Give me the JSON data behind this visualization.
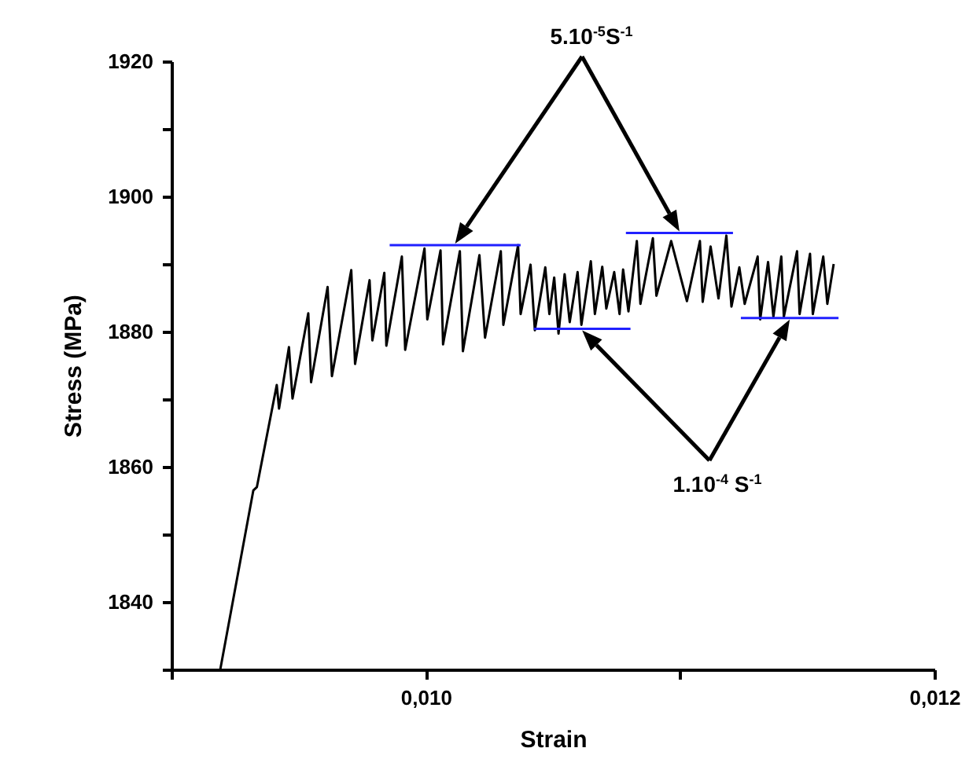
{
  "chart_data": {
    "type": "line",
    "xlabel": "Strain",
    "ylabel": "Stress (MPa)",
    "xlim": [
      0.009,
      0.012
    ],
    "ylim": [
      1830,
      1920
    ],
    "xticks": [
      {
        "value": 0.009,
        "label": null
      },
      {
        "value": 0.01,
        "label": "0,010"
      },
      {
        "value": 0.011,
        "label": null
      },
      {
        "value": 0.012,
        "label": "0,012"
      }
    ],
    "yticks": [
      {
        "value": 1830,
        "label": null
      },
      1840,
      {
        "value": 1850,
        "label": null
      },
      1860,
      {
        "value": 1870,
        "label": null
      },
      1880,
      {
        "value": 1890,
        "label": null
      },
      1900,
      {
        "value": 1910,
        "label": null
      },
      1920
    ],
    "series": [
      {
        "color": "#000000",
        "x": [
          0.009192,
          0.009322,
          0.009336,
          0.009414,
          0.009423,
          0.009462,
          0.009476,
          0.009538,
          0.009549,
          0.009614,
          0.009631,
          0.009707,
          0.009722,
          0.009779,
          0.00979,
          0.009837,
          0.009845,
          0.009906,
          0.009919,
          0.009995,
          0.010006,
          0.010058,
          0.010068,
          0.010134,
          0.010146,
          0.010211,
          0.010233,
          0.010295,
          0.010305,
          0.010363,
          0.010373,
          0.010412,
          0.010429,
          0.01047,
          0.010486,
          0.010505,
          0.010522,
          0.010546,
          0.010566,
          0.010597,
          0.010612,
          0.010649,
          0.010665,
          0.010694,
          0.01071,
          0.010741,
          0.010762,
          0.010776,
          0.010797,
          0.01083,
          0.010844,
          0.010893,
          0.010907,
          0.010965,
          0.011027,
          0.011078,
          0.011089,
          0.01112,
          0.011151,
          0.011182,
          0.011202,
          0.011233,
          0.011254,
          0.011305,
          0.011315,
          0.011346,
          0.011367,
          0.011398,
          0.011408,
          0.01146,
          0.01147,
          0.011511,
          0.011522,
          0.011563,
          0.011579,
          0.011604
        ],
        "values": [
          1830,
          1856.5,
          1857,
          1872.1,
          1868.6,
          1877.7,
          1870.1,
          1882.7,
          1872.5,
          1886.6,
          1873.4,
          1889.1,
          1875.2,
          1887.6,
          1878.7,
          1888.7,
          1877.9,
          1891.1,
          1877.3,
          1892.3,
          1881.8,
          1892,
          1878.1,
          1891.9,
          1877.1,
          1891.3,
          1879.1,
          1891.9,
          1881,
          1892.8,
          1882.6,
          1889.9,
          1880.2,
          1889.5,
          1882.6,
          1888,
          1879.7,
          1888.5,
          1881.4,
          1888.8,
          1881,
          1890.4,
          1882.6,
          1889.6,
          1883.4,
          1888.8,
          1882.6,
          1889.2,
          1883,
          1893.4,
          1884.1,
          1893.8,
          1885.3,
          1893.4,
          1884.5,
          1893.4,
          1884.4,
          1892.6,
          1884.9,
          1894.2,
          1883.7,
          1889.5,
          1884.1,
          1891.1,
          1881.8,
          1890.3,
          1882.2,
          1891.1,
          1882.2,
          1891.9,
          1882.6,
          1891.5,
          1882.6,
          1891.1,
          1884.1,
          1890
        ]
      },
      {
        "color": "#2020ff",
        "x": [
          0.009858,
          0.010373
        ],
        "values": [
          1892.8,
          1892.8
        ]
      },
      {
        "color": "#2020ff",
        "x": [
          0.010425,
          0.010805
        ],
        "values": [
          1880.4,
          1880.4
        ]
      },
      {
        "color": "#2020ff",
        "x": [
          0.010787,
          0.011208
        ],
        "values": [
          1894.6,
          1894.6
        ]
      },
      {
        "color": "#2020ff",
        "x": [
          0.011239,
          0.011623
        ],
        "values": [
          1882,
          1882
        ]
      }
    ],
    "annotations": [
      "5.10$^{-5}$S$^{-1}$",
      "1.10$^{-4}$ S$^{-1}$"
    ]
  }
}
